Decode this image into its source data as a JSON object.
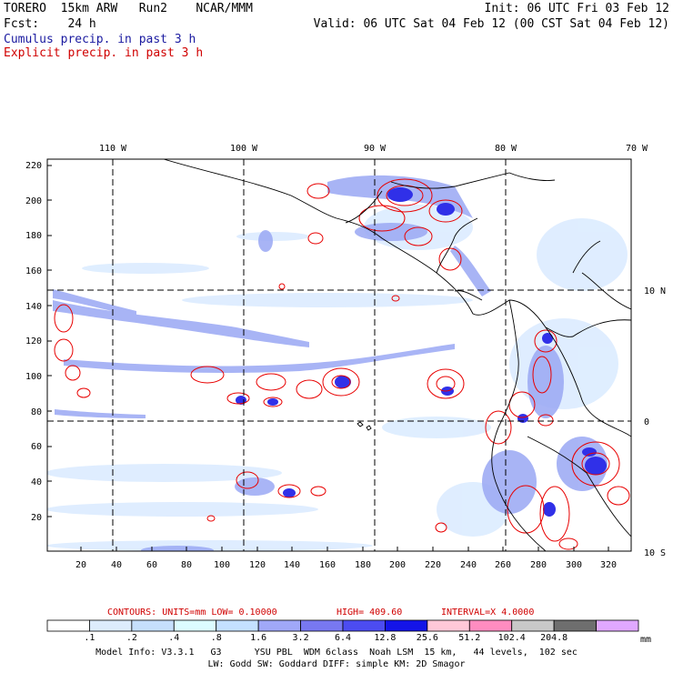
{
  "header": {
    "model": "TORERO  15km ARW   Run2    NCAR/MMM",
    "init": "Init: 06 UTC Fri 03 Feb 12",
    "fcst": "Fcst:    24 h",
    "valid": "Valid: 06 UTC Sat 04 Feb 12 (00 CST Sat 04 Feb 12)",
    "legend_cumulus": "Cumulus precip. in past 3 h",
    "legend_explicit": "Explicit precip. in past 3 h"
  },
  "map": {
    "lon_labels": [
      "110 W",
      "100 W",
      "90 W",
      "80 W",
      "70 W"
    ],
    "lat_labels": [
      "10 N",
      "0",
      "10 S"
    ],
    "y_ticks": [
      "220",
      "200",
      "180",
      "160",
      "140",
      "120",
      "100",
      "80",
      "60",
      "40",
      "20"
    ],
    "x_ticks": [
      "20",
      "40",
      "60",
      "80",
      "100",
      "120",
      "140",
      "160",
      "180",
      "200",
      "220",
      "240",
      "260",
      "280",
      "300",
      "320"
    ]
  },
  "contour_info": {
    "units": "CONTOURS:  UNITS=mm  LOW= 0.10000",
    "high": "HIGH=  409.60",
    "interval": "INTERVAL=X  4.0000"
  },
  "colorbar": {
    "labels": [
      ".1",
      ".2",
      ".4",
      ".8",
      "1.6",
      "3.2",
      "6.4",
      "12.8",
      "25.6",
      "51.2",
      "102.4",
      "204.8"
    ],
    "unit": "mm",
    "colors": [
      "#ffffff",
      "#ddecfc",
      "#c6dffc",
      "#dcfcff",
      "#c4e0ff",
      "#a0a8f8",
      "#7878f0",
      "#4c4cf0",
      "#1414e8",
      "#ffc8d8",
      "#ff8cc0",
      "#c8c8c8",
      "#6e6e6e",
      "#e0a8ff"
    ]
  },
  "footer": {
    "line1": "Model Info: V3.3.1   G3      YSU PBL  WDM 6class  Noah LSM  15 km,   44 levels,  102 sec",
    "line2": "LW: Godd SW: Goddard DIFF: simple KM: 2D Smagor"
  }
}
